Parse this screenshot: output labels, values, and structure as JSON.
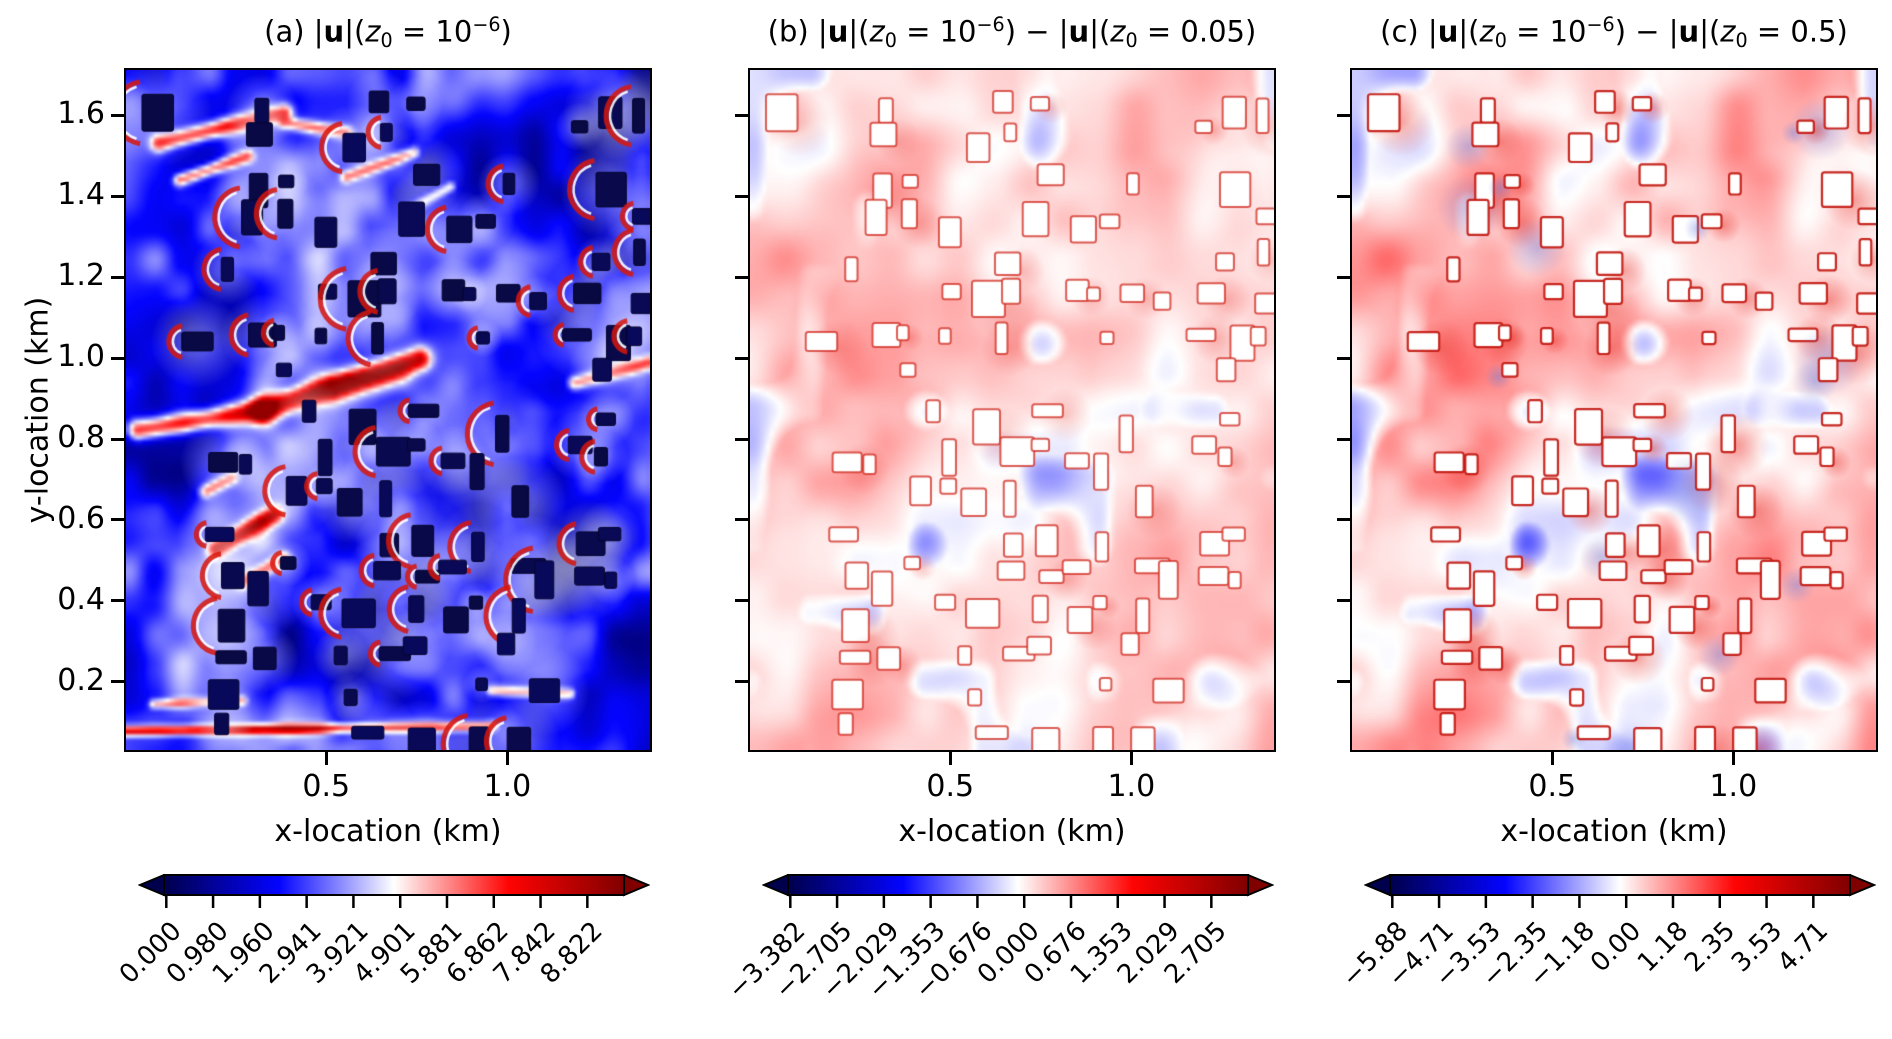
{
  "figure": {
    "background": "#ffffff",
    "text_color": "#000000",
    "description": "Three-panel heatmap comparison of horizontal velocity magnitude over an urban building array for different roughness lengths"
  },
  "colormap": {
    "name": "seismic",
    "stops": [
      [
        0,
        "#00004c"
      ],
      [
        0.25,
        "#0404ff"
      ],
      [
        0.5,
        "#ffffff"
      ],
      [
        0.75,
        "#ff0303"
      ],
      [
        1,
        "#800000"
      ]
    ],
    "extend": "both"
  },
  "colors": {
    "frame": "#000000",
    "building_fill_panel_a": "#09094a",
    "building_fill_panels_bc": "#ffffff",
    "building_outline_b": "rgba(208,40,30,0.75)",
    "building_outline_c": "rgba(195,24,16,0.92)",
    "crescent_red": "rgba(216,22,12,0.85)"
  },
  "panels": [
    {
      "id": "a",
      "title_text": "(a) |u|(z₀ = 10⁻⁶)",
      "title_segments": [
        {
          "t": "(a) |"
        },
        {
          "t": "u",
          "b": true
        },
        {
          "t": "|("
        },
        {
          "t": "z",
          "i": true
        },
        {
          "t": "0",
          "sub": true
        },
        {
          "t": " = 10"
        },
        {
          "t": "−6",
          "sup": true
        },
        {
          "t": ")"
        }
      ],
      "xlabel": "x-location (km)",
      "ylabel": "y-location (km)",
      "xtick_labels": [
        "0.5",
        "1.0"
      ],
      "ytick_labels": [
        "1.6",
        "1.4",
        "1.2",
        "1.0",
        "0.8",
        "0.6",
        "0.4",
        "0.2"
      ],
      "colorbar_tick_labels": [
        "0.000",
        "0.980",
        "1.960",
        "2.941",
        "3.921",
        "4.901",
        "5.881",
        "6.862",
        "7.842",
        "8.822"
      ],
      "render": {
        "style": "velocity"
      }
    },
    {
      "id": "b",
      "title_text": "(b) |u|(z₀ = 10⁻⁶) − |u|(z₀ = 0.05)",
      "title_segments": [
        {
          "t": "(b) |"
        },
        {
          "t": "u",
          "b": true
        },
        {
          "t": "|("
        },
        {
          "t": "z",
          "i": true
        },
        {
          "t": "0",
          "sub": true
        },
        {
          "t": " = 10"
        },
        {
          "t": "−6",
          "sup": true
        },
        {
          "t": ") − |"
        },
        {
          "t": "u",
          "b": true
        },
        {
          "t": "|("
        },
        {
          "t": "z",
          "i": true
        },
        {
          "t": "0",
          "sub": true
        },
        {
          "t": " = 0.05)"
        }
      ],
      "xlabel": "x-location (km)",
      "ylabel": "",
      "xtick_labels": [
        "0.5",
        "1.0"
      ],
      "ytick_labels": [],
      "colorbar_tick_labels": [
        "−3.382",
        "−2.705",
        "−2.029",
        "−1.353",
        "−0.676",
        "0.000",
        "0.676",
        "1.353",
        "2.029",
        "2.705"
      ],
      "render": {
        "style": "difference",
        "base": 0.548,
        "amp": 0.1,
        "blue": 0.45
      }
    },
    {
      "id": "c",
      "title_text": "(c) |u|(z₀ = 10⁻⁶) − |u|(z₀ = 0.5)",
      "title_segments": [
        {
          "t": "(c) |"
        },
        {
          "t": "u",
          "b": true
        },
        {
          "t": "|("
        },
        {
          "t": "z",
          "i": true
        },
        {
          "t": "0",
          "sub": true
        },
        {
          "t": " = 10"
        },
        {
          "t": "−6",
          "sup": true
        },
        {
          "t": ") − |"
        },
        {
          "t": "u",
          "b": true
        },
        {
          "t": "|("
        },
        {
          "t": "z",
          "i": true
        },
        {
          "t": "0",
          "sub": true
        },
        {
          "t": " = 0.5)"
        }
      ],
      "xlabel": "x-location (km)",
      "ylabel": "",
      "xtick_labels": [
        "0.5",
        "1.0"
      ],
      "ytick_labels": [],
      "colorbar_tick_labels": [
        "−5.88",
        "−4.71",
        "−3.53",
        "−2.35",
        "−1.18",
        "0.00",
        "1.18",
        "2.35",
        "3.53",
        "4.71"
      ],
      "render": {
        "style": "difference",
        "base": 0.556,
        "amp": 0.145,
        "blue": 0.6
      }
    }
  ],
  "chart_data": [
    {
      "type": "heatmap",
      "panel": "a",
      "title": "(a) |u|(z0 = 10^-6)",
      "xlabel": "x-location (km)",
      "ylabel": "y-location (km)",
      "xticks": [
        0.5,
        1.0
      ],
      "yticks": [
        0.2,
        0.4,
        0.6,
        0.8,
        1.0,
        1.2,
        1.4,
        1.6
      ],
      "x_range_est": [
        0,
        1.37
      ],
      "y_range_est": [
        0,
        1.72
      ],
      "colormap": "seismic",
      "colorbar_ticks": [
        0.0,
        0.98,
        1.96,
        2.941,
        3.921,
        4.901,
        5.881,
        6.862,
        7.842,
        8.822
      ],
      "colorbar_extend": "both",
      "appearance": "velocity magnitude field: mostly blue flow, dark-navy building footprints in a quasi-regular grid, white wake zones and bright red high-speed streaks (strongest near y=0.85-0.95 km and top-left)"
    },
    {
      "type": "heatmap",
      "panel": "b",
      "title": "(b) |u|(z0 = 10^-6) - |u|(z0 = 0.05)",
      "xlabel": "x-location (km)",
      "ylabel": "",
      "xticks": [
        0.5,
        1.0
      ],
      "yticks": [
        0.2,
        0.4,
        0.6,
        0.8,
        1.0,
        1.2,
        1.4,
        1.6
      ],
      "x_range_est": [
        0,
        1.37
      ],
      "y_range_est": [
        0,
        1.72
      ],
      "colormap": "seismic",
      "colorbar_ticks": [
        -3.382,
        -2.705,
        -2.029,
        -1.353,
        -0.676,
        0.0,
        0.676,
        1.353,
        2.029,
        2.705
      ],
      "colorbar_extend": "both",
      "appearance": "difference field near zero: pale pink diagonal streaks, white buildings with thin red outlines, scattered pale blue patches"
    },
    {
      "type": "heatmap",
      "panel": "c",
      "title": "(c) |u|(z0 = 10^-6) - |u|(z0 = 0.5)",
      "xlabel": "x-location (km)",
      "ylabel": "",
      "xticks": [
        0.5,
        1.0
      ],
      "yticks": [
        0.2,
        0.4,
        0.6,
        0.8,
        1.0,
        1.2,
        1.4,
        1.6
      ],
      "x_range_est": [
        0,
        1.37
      ],
      "y_range_est": [
        0,
        1.72
      ],
      "colormap": "seismic",
      "colorbar_ticks": [
        -5.88,
        -4.71,
        -3.53,
        -2.35,
        -1.18,
        0.0,
        1.18,
        2.35,
        3.53,
        4.71
      ],
      "colorbar_extend": "both",
      "appearance": "like panel b but stronger amplitudes: more saturated pink streaks, more blue patches, buildings white with red outlines"
    }
  ]
}
